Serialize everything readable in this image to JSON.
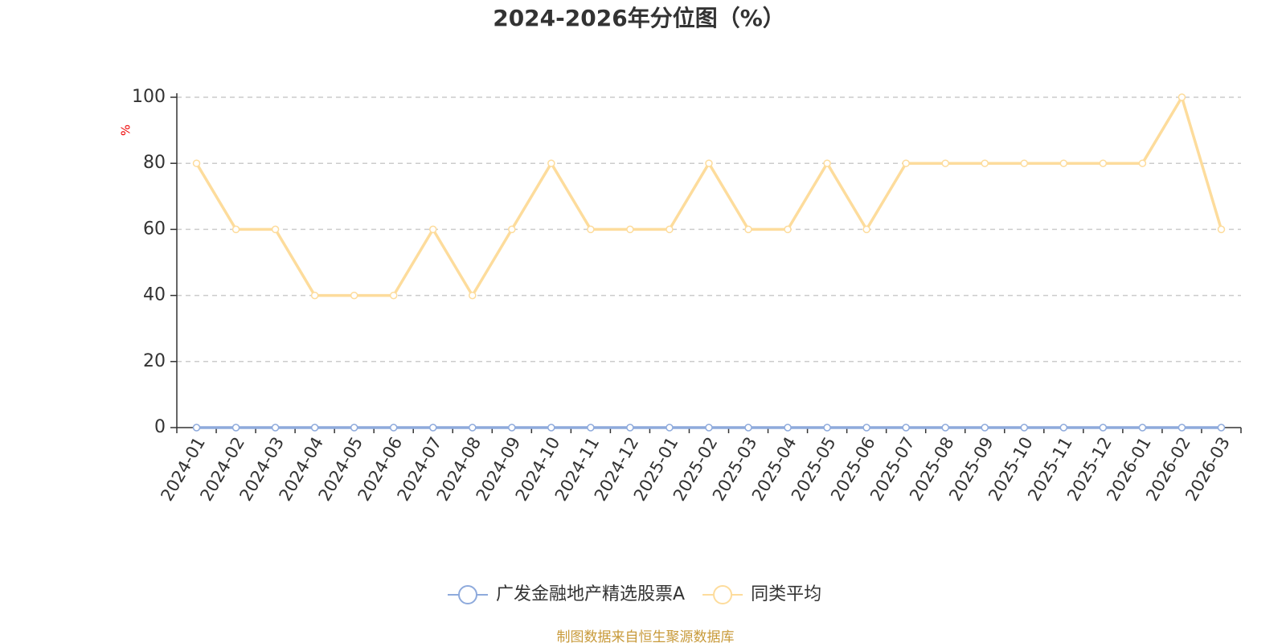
{
  "chart_data": {
    "type": "line",
    "title": "2024-2026年分位图（%）",
    "y_unit": "%",
    "categories": [
      "2024-01",
      "2024-02",
      "2024-03",
      "2024-04",
      "2024-05",
      "2024-06",
      "2024-07",
      "2024-08",
      "2024-09",
      "2024-10",
      "2024-11",
      "2024-12",
      "2025-01",
      "2025-02",
      "2025-03",
      "2025-04",
      "2025-05",
      "2025-06",
      "2025-07",
      "2025-08",
      "2025-09",
      "2025-10",
      "2025-11",
      "2025-12",
      "2026-01",
      "2026-02",
      "2026-03"
    ],
    "series": [
      {
        "name": "广发金融地产精选股票A",
        "color": "#8eaadc",
        "values": [
          0,
          0,
          0,
          0,
          0,
          0,
          0,
          0,
          0,
          0,
          0,
          0,
          0,
          0,
          0,
          0,
          0,
          0,
          0,
          0,
          0,
          0,
          0,
          0,
          0,
          0,
          0
        ]
      },
      {
        "name": "同类平均",
        "color": "#fddc9c",
        "values": [
          80,
          60,
          60,
          40,
          40,
          40,
          60,
          40,
          60,
          80,
          60,
          60,
          60,
          80,
          60,
          60,
          80,
          60,
          80,
          80,
          80,
          80,
          80,
          80,
          80,
          100,
          60
        ]
      }
    ],
    "ylim": [
      0,
      100
    ],
    "yticks": [
      0,
      20,
      40,
      60,
      80,
      100
    ],
    "grid": true,
    "source": "制图数据来自恒生聚源数据库"
  }
}
